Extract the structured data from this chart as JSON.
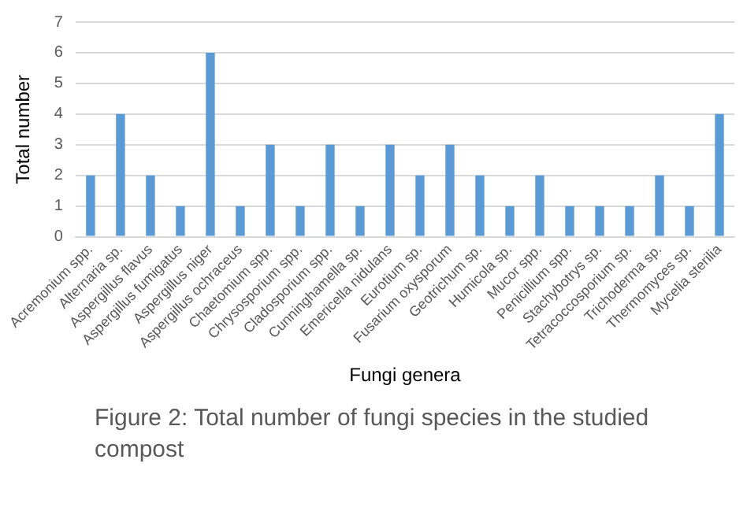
{
  "chart_data": {
    "type": "bar",
    "xlabel": "Fungi genera",
    "ylabel": "Total number",
    "categories": [
      "Acremonium spp.",
      "Alternaria sp.",
      "Aspergillus flavus",
      "Aspergillus fumigatus",
      "Aspergillus niger",
      "Aspergillus ochraceus",
      "Chaetomium spp.",
      "Chrysosporium spp.",
      "Cladosporium spp.",
      "Cunninghamella sp.",
      "Emericella nidulans",
      "Eurotium sp.",
      "Fusarium oxysporum",
      "Geotrichum sp.",
      "Humicola sp.",
      "Mucor spp.",
      "Penicillium spp.",
      "Stachybotrys sp.",
      "Tetracoccosporium sp.",
      "Trichoderma sp.",
      "Thermomyces sp.",
      "Mycelia sterilia"
    ],
    "values": [
      2,
      4,
      2,
      1,
      6,
      1,
      3,
      1,
      3,
      1,
      3,
      2,
      3,
      2,
      1,
      2,
      1,
      1,
      1,
      2,
      1,
      4
    ],
    "color": "#5b9bd5",
    "ylim": [
      0,
      7
    ],
    "yticks": [
      0,
      1,
      2,
      3,
      4,
      5,
      6,
      7
    ],
    "grid": "y",
    "annotations": [
      "Figure 2: Total number of fungi species in the studied compost"
    ]
  }
}
